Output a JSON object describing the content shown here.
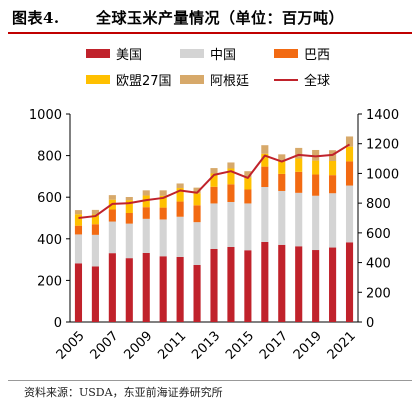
{
  "header": {
    "figure_label": "图表4.",
    "title": "全球玉米产量情况（单位：百万吨）"
  },
  "source": "资料来源：USDA，东亚前海证券研究所",
  "colors": {
    "美国": "#c0222b",
    "中国": "#d4d4d4",
    "巴西": "#f26a12",
    "欧盟27国": "#ffc000",
    "阿根廷": "#d7a96a",
    "全球": "#c0222b"
  },
  "legend": [
    {
      "label": "美国",
      "kind": "bar"
    },
    {
      "label": "中国",
      "kind": "bar"
    },
    {
      "label": "巴西",
      "kind": "bar"
    },
    {
      "label": "欧盟27国",
      "kind": "bar"
    },
    {
      "label": "阿根廷",
      "kind": "bar"
    },
    {
      "label": "全球",
      "kind": "line"
    }
  ],
  "chart_data": {
    "type": "bar",
    "stacked": true,
    "categories": [
      "2005",
      "2006",
      "2007",
      "2008",
      "2009",
      "2010",
      "2011",
      "2012",
      "2013",
      "2014",
      "2015",
      "2016",
      "2017",
      "2018",
      "2019",
      "2020",
      "2021"
    ],
    "x_tick_labels": [
      "2005",
      "2007",
      "2009",
      "2011",
      "2013",
      "2015",
      "2017",
      "2019",
      "2021"
    ],
    "series": [
      {
        "name": "美国",
        "axis": "left",
        "values": [
          282,
          267,
          331,
          307,
          332,
          316,
          313,
          274,
          351,
          361,
          345,
          385,
          371,
          364,
          346,
          358,
          383
        ]
      },
      {
        "name": "中国",
        "axis": "left",
        "values": [
          139,
          152,
          152,
          166,
          164,
          177,
          193,
          206,
          219,
          216,
          225,
          264,
          259,
          257,
          261,
          261,
          273
        ]
      },
      {
        "name": "巴西",
        "axis": "left",
        "values": [
          42,
          51,
          58,
          51,
          56,
          57,
          73,
          81,
          80,
          85,
          67,
          98,
          82,
          101,
          102,
          87,
          116
        ]
      },
      {
        "name": "欧盟27国",
        "axis": "left",
        "values": [
          55,
          47,
          47,
          62,
          56,
          57,
          65,
          58,
          64,
          76,
          58,
          62,
          62,
          64,
          67,
          68,
          71
        ]
      },
      {
        "name": "阿根廷",
        "axis": "left",
        "values": [
          20,
          22,
          22,
          15,
          25,
          26,
          22,
          27,
          26,
          29,
          30,
          41,
          32,
          51,
          51,
          52,
          49
        ]
      },
      {
        "name": "全球",
        "type": "line",
        "axis": "right",
        "values": [
          700,
          713,
          795,
          800,
          820,
          835,
          885,
          870,
          990,
          1015,
          970,
          1120,
          1080,
          1125,
          1115,
          1125,
          1195
        ]
      }
    ],
    "y_left": {
      "min": 0,
      "max": 1000,
      "ticks": [
        0,
        200,
        400,
        600,
        800,
        1000
      ]
    },
    "y_right": {
      "min": 0,
      "max": 1400,
      "ticks": [
        0,
        200,
        400,
        600,
        800,
        1000,
        1200,
        1400
      ]
    },
    "grid": false,
    "legend_position": "top"
  }
}
